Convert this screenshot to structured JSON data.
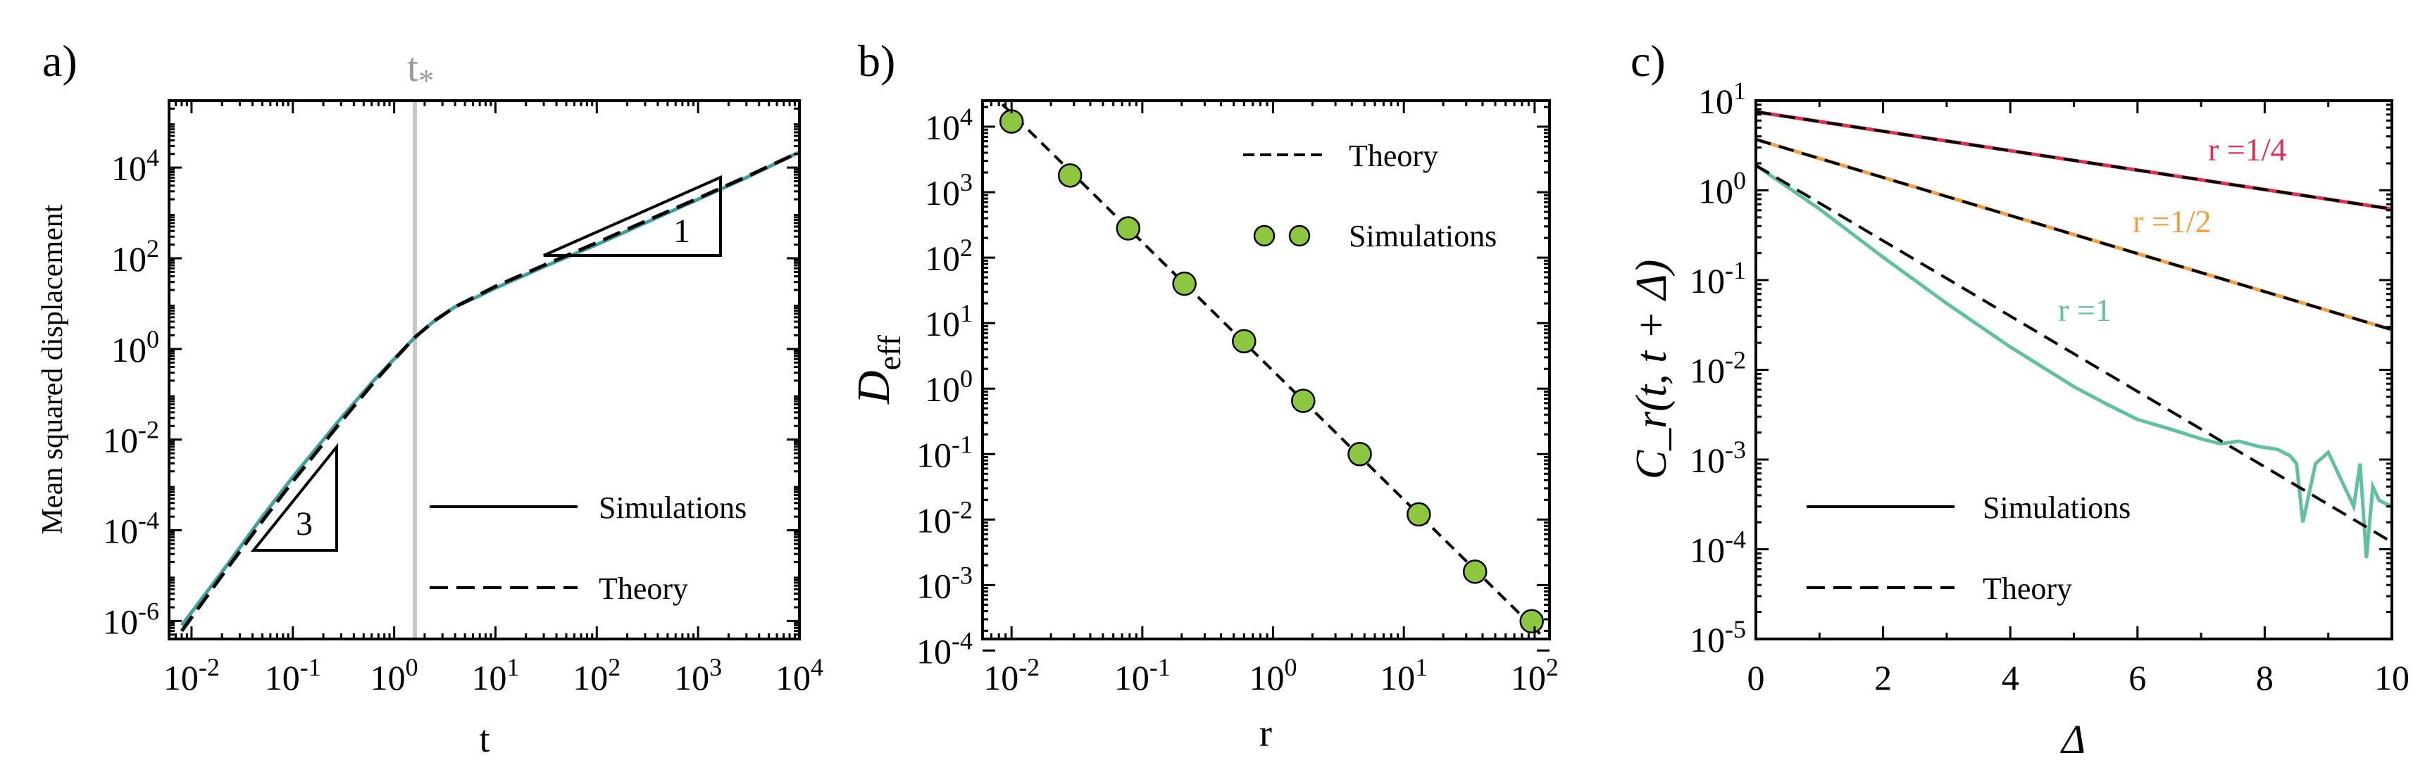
{
  "chart_data": [
    {
      "type": "line",
      "panel_label": "a)",
      "xscale": "log",
      "yscale": "log",
      "xlim": [
        0.006,
        10000
      ],
      "ylim": [
        4e-07,
        300000
      ],
      "xlabel": "t",
      "ylabel": "Mean squared displacement",
      "x_tick_labels": [
        {
          "base": "10",
          "exp": "-2"
        },
        {
          "base": "10",
          "exp": "-1"
        },
        {
          "base": "10",
          "exp": "0"
        },
        {
          "base": "10",
          "exp": "1"
        },
        {
          "base": "10",
          "exp": "2"
        },
        {
          "base": "10",
          "exp": "3"
        },
        {
          "base": "10",
          "exp": "4"
        }
      ],
      "y_tick_labels": [
        {
          "base": "10",
          "exp": "-6"
        },
        {
          "base": "10",
          "exp": "-4"
        },
        {
          "base": "10",
          "exp": "-2"
        },
        {
          "base": "10",
          "exp": "0"
        },
        {
          "base": "10",
          "exp": "2"
        },
        {
          "base": "10",
          "exp": "4"
        }
      ],
      "vline": {
        "x": 1.6,
        "label_base": "t",
        "label_sub": "*",
        "color": "#c8c8c8"
      },
      "series": [
        {
          "name": "Simulations",
          "style": "solid",
          "color": "#40a0a0",
          "x": [
            0.008,
            0.02,
            0.05,
            0.1,
            0.3,
            0.6,
            1.0,
            1.6,
            2.5,
            4,
            7,
            10,
            30,
            100,
            300,
            1000,
            3000,
            10000
          ],
          "y": [
            8e-07,
            1.2e-05,
            0.0002,
            0.0015,
            0.03,
            0.18,
            0.6,
            1.8,
            4.2,
            8.5,
            15,
            22,
            65,
            200,
            600,
            2000,
            6000,
            22000
          ]
        },
        {
          "name": "Theory",
          "style": "dashed",
          "color": "#000000",
          "x": [
            0.008,
            0.02,
            0.05,
            0.1,
            0.3,
            0.6,
            1.0,
            1.6,
            2.5,
            4,
            7,
            10,
            30,
            100,
            300,
            1000,
            3000,
            10000
          ],
          "y": [
            6e-07,
            1e-05,
            0.00016,
            0.0012,
            0.025,
            0.16,
            0.58,
            1.8,
            4.2,
            8.5,
            16,
            24,
            70,
            220,
            650,
            2100,
            6300,
            22000
          ]
        }
      ],
      "slope_triangles": [
        {
          "label": "3"
        },
        {
          "label": "1"
        }
      ],
      "legend": {
        "position": "lower-right",
        "entries": [
          "Simulations",
          "Theory"
        ]
      }
    },
    {
      "type": "scatter",
      "panel_label": "b)",
      "xscale": "log",
      "yscale": "log",
      "xlim": [
        0.006,
        130
      ],
      "ylim": [
        0.00015,
        25000
      ],
      "xlabel": "r",
      "ylabel_base": "D",
      "ylabel_sub": "eff",
      "x_tick_labels": [
        {
          "base": "10",
          "exp": "-2"
        },
        {
          "base": "10",
          "exp": "-1"
        },
        {
          "base": "10",
          "exp": "0"
        },
        {
          "base": "10",
          "exp": "1"
        },
        {
          "base": "10",
          "exp": "2"
        }
      ],
      "y_tick_labels": [
        {
          "base": "10",
          "exp": "-4"
        },
        {
          "base": "10",
          "exp": "-3"
        },
        {
          "base": "10",
          "exp": "-2"
        },
        {
          "base": "10",
          "exp": "-1"
        },
        {
          "base": "10",
          "exp": "0"
        },
        {
          "base": "10",
          "exp": "1"
        },
        {
          "base": "10",
          "exp": "2"
        },
        {
          "base": "10",
          "exp": "3"
        },
        {
          "base": "10",
          "exp": "4"
        }
      ],
      "series": [
        {
          "name": "Theory",
          "style": "dashed",
          "color": "#000000",
          "x": [
            0.0085,
            110
          ],
          "y": [
            22000,
            0.00018
          ]
        },
        {
          "name": "Simulations",
          "style": "marker",
          "color": "#8dc63f",
          "x": [
            0.01,
            0.028,
            0.078,
            0.21,
            0.6,
            1.7,
            4.6,
            13,
            35,
            95
          ],
          "y": [
            12000,
            1800,
            280,
            40,
            5.3,
            0.65,
            0.1,
            0.012,
            0.0016,
            0.00028
          ]
        }
      ],
      "legend": {
        "position": "upper-right",
        "entries": [
          "Theory",
          "Simulations"
        ]
      }
    },
    {
      "type": "line",
      "panel_label": "c)",
      "xscale": "linear",
      "yscale": "log",
      "xlim": [
        0,
        10
      ],
      "ylim": [
        1e-05,
        10
      ],
      "xlabel": "Δ",
      "ylabel": "C_r(t, t + Δ)",
      "x_tick_labels": [
        "0",
        "2",
        "4",
        "6",
        "8",
        "10"
      ],
      "y_tick_labels": [
        {
          "base": "10",
          "exp": "-5"
        },
        {
          "base": "10",
          "exp": "-4"
        },
        {
          "base": "10",
          "exp": "-3"
        },
        {
          "base": "10",
          "exp": "-2"
        },
        {
          "base": "10",
          "exp": "-1"
        },
        {
          "base": "10",
          "exp": "0"
        },
        {
          "base": "10",
          "exp": "1"
        }
      ],
      "series": [
        {
          "name": "r =1/4",
          "style": "solid",
          "color": "#e03050",
          "x": [
            0,
            10
          ],
          "y": [
            7.5,
            0.62
          ]
        },
        {
          "name": "r =1/2",
          "style": "solid",
          "color": "#f0a040",
          "x": [
            0,
            10
          ],
          "y": [
            3.7,
            0.028
          ]
        },
        {
          "name": "r =1",
          "style": "solid",
          "color": "#60c0a0",
          "x": [
            0,
            1,
            2,
            3,
            4,
            5,
            5.5,
            6,
            6.5,
            7,
            7.3,
            7.6,
            7.9,
            8.2,
            8.4,
            8.5,
            8.6,
            8.8,
            9.0,
            9.2,
            9.4,
            9.5,
            9.6,
            9.7,
            9.8,
            10
          ],
          "y": [
            1.9,
            0.62,
            0.18,
            0.055,
            0.018,
            0.0065,
            0.0042,
            0.0028,
            0.0022,
            0.0017,
            0.0015,
            0.0016,
            0.0014,
            0.0013,
            0.0011,
            0.0009,
            0.0002,
            0.0009,
            0.0012,
            0.0006,
            0.0003,
            0.0009,
            8e-05,
            0.0005,
            0.00035,
            0.0003
          ]
        },
        {
          "name": "Theory r =1/4",
          "style": "dashed",
          "color": "#000000",
          "x": [
            0,
            10
          ],
          "y": [
            7.5,
            0.62
          ]
        },
        {
          "name": "Theory r =1/2",
          "style": "dashed",
          "color": "#000000",
          "x": [
            0,
            10
          ],
          "y": [
            3.7,
            0.028
          ]
        },
        {
          "name": "Theory r =1",
          "style": "dashed",
          "color": "#000000",
          "x": [
            0,
            10
          ],
          "y": [
            1.9,
            0.00012
          ]
        }
      ],
      "annotations": [
        {
          "text": "r =1/4",
          "color": "#e03050"
        },
        {
          "text": "r =1/2",
          "color": "#f0a040"
        },
        {
          "text": "r =1",
          "color": "#60c0a0"
        }
      ],
      "legend": {
        "position": "lower-left",
        "entries": [
          "Simulations",
          "Theory"
        ]
      }
    }
  ]
}
